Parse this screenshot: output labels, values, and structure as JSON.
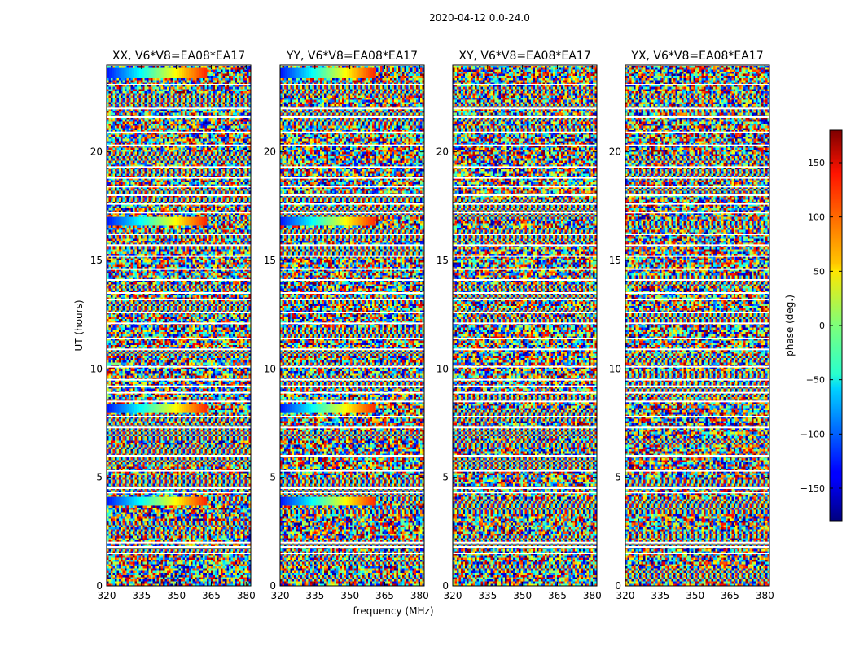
{
  "chart_data": {
    "type": "heatmap",
    "suptitle": "2020-04-12 0.0-24.0",
    "xlabel": "frequency (MHz)",
    "ylabel": "UT (hours)",
    "xlim": [
      320,
      382
    ],
    "ylim": [
      0,
      24
    ],
    "xticks": [
      "320",
      "335",
      "350",
      "365",
      "380"
    ],
    "xtick_values": [
      320,
      335,
      350,
      365,
      380
    ],
    "yticks": [
      "0",
      "5",
      "10",
      "15",
      "20"
    ],
    "ytick_values": [
      0,
      5,
      10,
      15,
      20
    ],
    "panels": [
      {
        "title": "XX, V6*V8=EA08*EA17",
        "coherent_bands_hours": [
          [
            23.4,
            23.9
          ],
          [
            16.6,
            17.0
          ],
          [
            8.0,
            8.4
          ],
          [
            3.7,
            4.1
          ]
        ],
        "coherent_end_mhz": 363
      },
      {
        "title": "YY, V6*V8=EA08*EA17",
        "coherent_bands_hours": [
          [
            23.4,
            23.9
          ],
          [
            16.6,
            17.0
          ],
          [
            8.0,
            8.4
          ],
          [
            3.7,
            4.1
          ]
        ],
        "coherent_end_mhz": 361
      },
      {
        "title": "XY, V6*V8=EA08*EA17",
        "coherent_bands_hours": [],
        "coherent_end_mhz": 0
      },
      {
        "title": "YX, V6*V8=EA08*EA17",
        "coherent_bands_hours": [],
        "coherent_end_mhz": 0
      }
    ],
    "flagged_rows_hours": [
      1.5,
      1.8,
      2.0,
      4.3,
      4.5,
      5.3,
      6.0,
      7.3,
      7.8,
      8.5,
      8.9,
      9.2,
      9.5,
      10.1,
      10.9,
      11.4,
      12.1,
      12.6,
      13.2,
      13.5,
      14.1,
      14.6,
      15.2,
      15.7,
      16.2,
      17.2,
      17.6,
      18.0,
      18.4,
      18.8,
      19.3,
      20.3,
      20.9,
      21.6,
      22.0,
      23.1,
      24.0
    ],
    "colorbar": {
      "label": "phase (deg.)",
      "range": [
        -180,
        180
      ],
      "ticks": [
        "150",
        "100",
        "50",
        "0",
        "−50",
        "−100",
        "−150"
      ],
      "tick_values": [
        150,
        100,
        50,
        0,
        -50,
        -100,
        -150
      ],
      "colormap": "jet"
    }
  }
}
